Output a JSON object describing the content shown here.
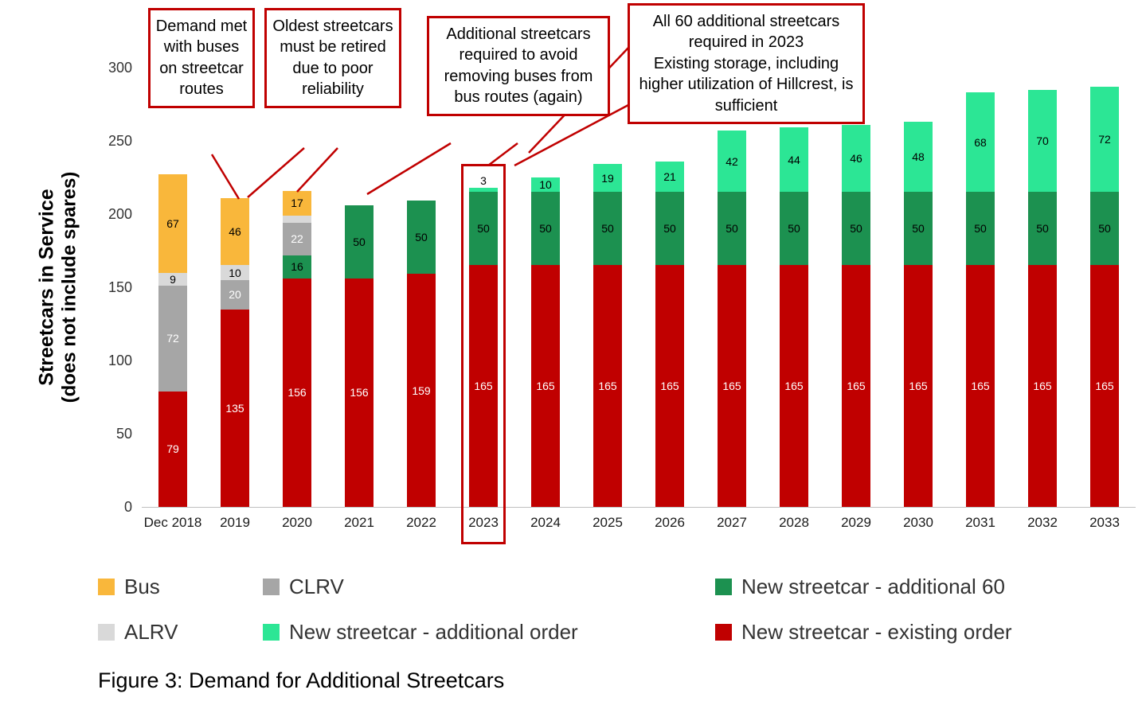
{
  "caption": "Figure 3: Demand for Additional Streetcars",
  "annotations": [
    {
      "text": "Demand met with buses on streetcar routes"
    },
    {
      "text": "Oldest streetcars must be retired due to poor reliability"
    },
    {
      "text": "Additional streetcars required to avoid removing buses from bus routes (again)"
    },
    {
      "text": "All 60 additional streetcars required in 2023\nExisting storage, including higher utilization of Hillcrest, is sufficient"
    }
  ],
  "legend": {
    "items": [
      {
        "label": "Bus",
        "color": "#F9B73B"
      },
      {
        "label": "CLRV",
        "color": "#A6A6A6"
      },
      {
        "label": "New streetcar - additional 60",
        "color": "#1C9150"
      },
      {
        "label": "ALRV",
        "color": "#D9D9D9"
      },
      {
        "label": "New streetcar - additional order",
        "color": "#2CE695"
      },
      {
        "label": "New streetcar - existing order",
        "color": "#C00000"
      }
    ]
  },
  "chart_data": {
    "type": "bar",
    "stacked": true,
    "title": "",
    "ylabel_line1": "Streetcars in Service",
    "ylabel_line2": "(does not include spares)",
    "ylim": [
      0,
      300
    ],
    "yticks": [
      0,
      50,
      100,
      150,
      200,
      250,
      300
    ],
    "grid": false,
    "legend_position": "bottom",
    "categories": [
      "Dec 2018",
      "2019",
      "2020",
      "2021",
      "2022",
      "2023",
      "2024",
      "2025",
      "2026",
      "2027",
      "2028",
      "2029",
      "2030",
      "2031",
      "2032",
      "2033"
    ],
    "highlight_category": "2023",
    "series": [
      {
        "name": "New streetcar - existing order",
        "color": "#C00000",
        "label_color": "#FFFFFF",
        "values": [
          79,
          135,
          156,
          156,
          159,
          165,
          165,
          165,
          165,
          165,
          165,
          165,
          165,
          165,
          165,
          165
        ]
      },
      {
        "name": "New streetcar - additional 60",
        "color": "#1C9150",
        "label_color": "#000000",
        "values": [
          0,
          0,
          16,
          50,
          50,
          50,
          50,
          50,
          50,
          50,
          50,
          50,
          50,
          50,
          50,
          50
        ]
      },
      {
        "name": "CLRV",
        "color": "#A6A6A6",
        "label_color": "#FFFFFF",
        "values": [
          72,
          20,
          22,
          0,
          0,
          0,
          0,
          0,
          0,
          0,
          0,
          0,
          0,
          0,
          0,
          0
        ]
      },
      {
        "name": "ALRV",
        "color": "#D9D9D9",
        "label_color": "#000000",
        "values": [
          9,
          10,
          5,
          0,
          0,
          0,
          0,
          0,
          0,
          0,
          0,
          0,
          0,
          0,
          0,
          0
        ]
      },
      {
        "name": "Bus",
        "color": "#F9B73B",
        "label_color": "#000000",
        "values": [
          67,
          46,
          17,
          0,
          0,
          0,
          0,
          0,
          0,
          0,
          0,
          0,
          0,
          0,
          0,
          0
        ]
      },
      {
        "name": "New streetcar - additional order",
        "color": "#2CE695",
        "label_color": "#000000",
        "values": [
          0,
          0,
          0,
          0,
          0,
          3,
          10,
          19,
          21,
          42,
          44,
          46,
          48,
          68,
          70,
          72
        ]
      }
    ]
  }
}
